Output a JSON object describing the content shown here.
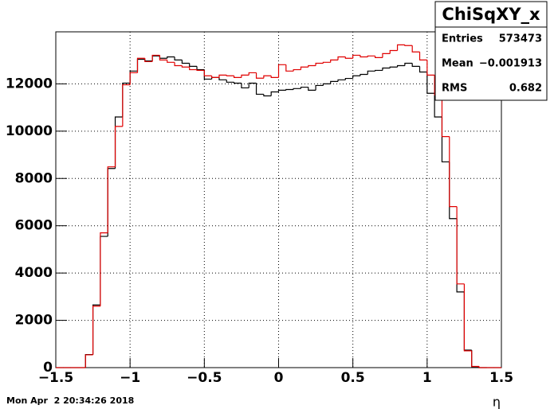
{
  "chart_data": {
    "type": "histogram",
    "bins": [
      -1.5,
      -1.45,
      -1.4,
      -1.35,
      -1.3,
      -1.25,
      -1.2,
      -1.15,
      -1.1,
      -1.05,
      -1.0,
      -0.95,
      -0.9,
      -0.85,
      -0.8,
      -0.75,
      -0.7,
      -0.65,
      -0.6,
      -0.55,
      -0.5,
      -0.45,
      -0.4,
      -0.35,
      -0.3,
      -0.25,
      -0.2,
      -0.15,
      -0.1,
      -0.05,
      0,
      0.05,
      0.1,
      0.15,
      0.2,
      0.25,
      0.3,
      0.35,
      0.4,
      0.45,
      0.5,
      0.55,
      0.6,
      0.65,
      0.7,
      0.75,
      0.8,
      0.85,
      0.9,
      0.95,
      1.0,
      1.05,
      1.1,
      1.15,
      1.2,
      1.25,
      1.3,
      1.35,
      1.4,
      1.45,
      1.5
    ],
    "series": [
      {
        "color": "#000000",
        "values": [
          0,
          0,
          0,
          0,
          550,
          2650,
          5550,
          8420,
          10600,
          12030,
          12540,
          13040,
          12970,
          13180,
          13080,
          13140,
          13010,
          12870,
          12740,
          12600,
          12200,
          12270,
          12170,
          12070,
          12030,
          11830,
          12030,
          11560,
          11490,
          11660,
          11730,
          11760,
          11800,
          11860,
          11730,
          11930,
          12000,
          12100,
          12170,
          12230,
          12340,
          12400,
          12540,
          12570,
          12670,
          12710,
          12770,
          12870,
          12740,
          12500,
          11600,
          10600,
          8700,
          6300,
          3200,
          740,
          40,
          0,
          0,
          0
        ]
      },
      {
        "color": "#e00000",
        "values": [
          0,
          0,
          0,
          0,
          540,
          2600,
          5700,
          8490,
          10200,
          11960,
          12470,
          13080,
          12940,
          13210,
          13010,
          12910,
          12770,
          12710,
          12600,
          12570,
          12340,
          12270,
          12370,
          12340,
          12270,
          12370,
          12470,
          12240,
          12340,
          12270,
          12810,
          12540,
          12600,
          12710,
          12770,
          12870,
          12910,
          13010,
          13140,
          13080,
          13210,
          13140,
          13180,
          13110,
          13280,
          13410,
          13650,
          13620,
          13350,
          13010,
          12370,
          11530,
          9770,
          6810,
          3540,
          710,
          50,
          0,
          0,
          0
        ]
      }
    ],
    "xlim": [
      -1.5,
      1.5
    ],
    "xticks": [
      {
        "value": -1.5,
        "label": "−1.5"
      },
      {
        "value": -1,
        "label": "−1"
      },
      {
        "value": -0.5,
        "label": "−0.5"
      },
      0,
      0.5,
      1,
      1.5
    ],
    "ylim": [
      0,
      14200
    ],
    "yticks": [
      0,
      2000,
      4000,
      6000,
      8000,
      10000,
      12000
    ],
    "grid": true,
    "x_label": "η",
    "stats": {
      "title": "ChiSqXY_x",
      "rows": [
        [
          "Entries",
          "573473"
        ],
        [
          "Mean",
          "−0.001913"
        ],
        [
          "RMS",
          "0.682"
        ]
      ]
    },
    "timestamp": "Mon Apr  2 20:34:26 2018"
  }
}
